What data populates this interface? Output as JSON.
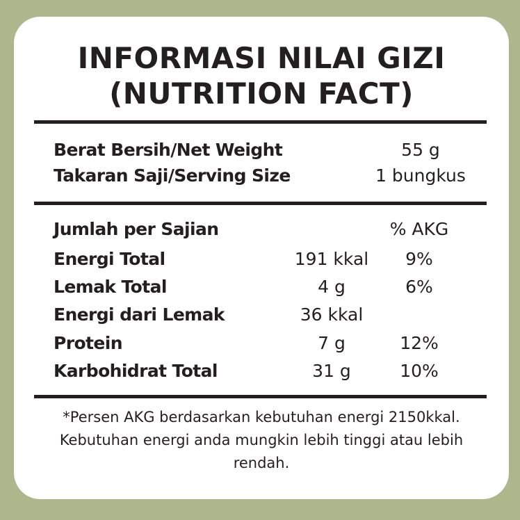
{
  "title_line1": "INFORMASI NILAI GIZI",
  "title_line2": "(NUTRITION FACT)",
  "net_weight": {
    "label": "Berat Bersih/Net Weight",
    "value": "55 g"
  },
  "serving_size": {
    "label": "Takaran Saji/Serving Size",
    "value": "1 bungkus"
  },
  "per_serving_label": "Jumlah per Sajian",
  "akg_header": "% AKG",
  "nutrients": [
    {
      "label": "Energi Total",
      "amount": "191 kkal",
      "akg": "9%"
    },
    {
      "label": "Lemak Total",
      "amount": "4 g",
      "akg": "6%"
    },
    {
      "label": "Energi dari Lemak",
      "amount": "36 kkal",
      "akg": ""
    },
    {
      "label": "Protein",
      "amount": "7 g",
      "akg": "12%"
    },
    {
      "label": "Karbohidrat Total",
      "amount": "31 g",
      "akg": "10%"
    }
  ],
  "footnote": "*Persen AKG berdasarkan kebutuhan energi 2150kkal. Kebutuhan energi anda mungkin lebih tinggi atau lebih rendah.",
  "colors": {
    "background": "#aeb78c",
    "card": "#ffffff",
    "text": "#231f20"
  }
}
